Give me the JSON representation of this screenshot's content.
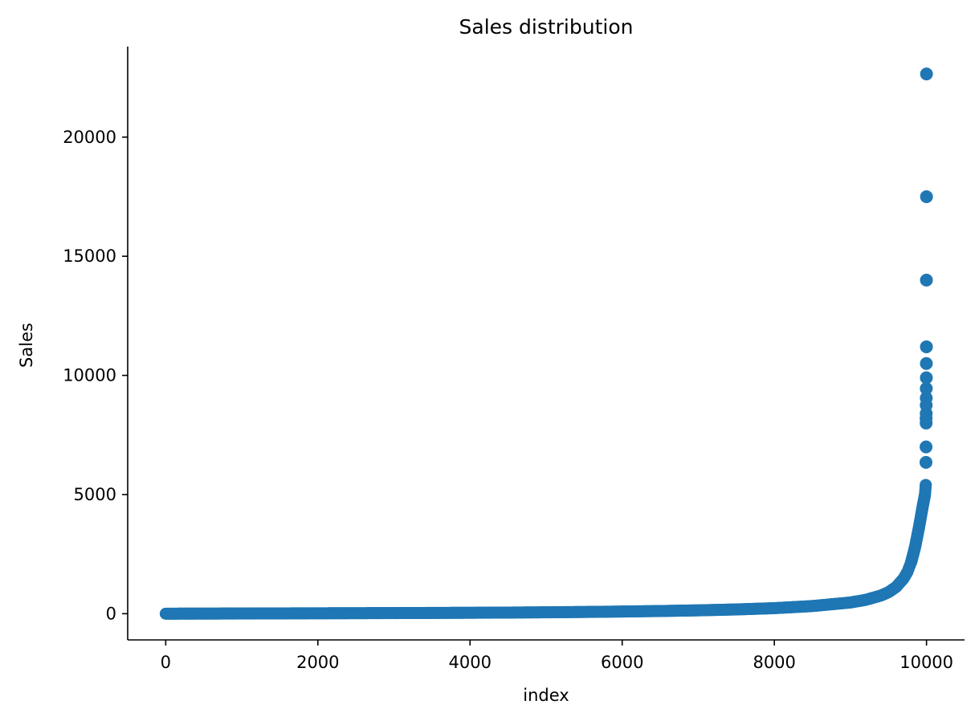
{
  "chart_data": {
    "type": "scatter",
    "title": "Sales distribution",
    "xlabel": "index",
    "ylabel": "Sales",
    "xlim": [
      -500,
      10500
    ],
    "ylim": [
      -1100,
      23800
    ],
    "xticks": [
      0,
      2000,
      4000,
      6000,
      8000,
      10000
    ],
    "yticks": [
      0,
      5000,
      10000,
      15000,
      20000
    ],
    "xtick_labels": [
      "0",
      "2000",
      "4000",
      "6000",
      "8000",
      "10000"
    ],
    "ytick_labels": [
      "0",
      "5000",
      "10000",
      "15000",
      "20000"
    ],
    "grid": false,
    "legend": "none",
    "marker_color": "#1f77b4",
    "curve_points": [
      [
        0,
        0
      ],
      [
        500,
        4
      ],
      [
        1000,
        8
      ],
      [
        1500,
        13
      ],
      [
        2000,
        17
      ],
      [
        2500,
        21
      ],
      [
        3000,
        26
      ],
      [
        3500,
        32
      ],
      [
        4000,
        38
      ],
      [
        4500,
        47
      ],
      [
        5000,
        58
      ],
      [
        5500,
        72
      ],
      [
        6000,
        90
      ],
      [
        6500,
        112
      ],
      [
        7000,
        140
      ],
      [
        7500,
        178
      ],
      [
        8000,
        232
      ],
      [
        8500,
        320
      ],
      [
        9000,
        470
      ],
      [
        9200,
        580
      ],
      [
        9400,
        760
      ],
      [
        9500,
        900
      ],
      [
        9600,
        1120
      ],
      [
        9700,
        1480
      ],
      [
        9750,
        1760
      ],
      [
        9800,
        2180
      ],
      [
        9850,
        2800
      ],
      [
        9900,
        3600
      ],
      [
        9950,
        4500
      ],
      [
        9980,
        5000
      ],
      [
        9990,
        5400
      ]
    ],
    "outliers": [
      {
        "x": 9993,
        "y": 6350
      },
      {
        "x": 9994,
        "y": 7000
      },
      {
        "x": 9995,
        "y": 8000
      },
      {
        "x": 9995,
        "y": 8200
      },
      {
        "x": 9996,
        "y": 8400
      },
      {
        "x": 9996,
        "y": 8750
      },
      {
        "x": 9997,
        "y": 9050
      },
      {
        "x": 9997,
        "y": 9450
      },
      {
        "x": 9998,
        "y": 9900
      },
      {
        "x": 9998,
        "y": 10500
      },
      {
        "x": 9999,
        "y": 11200
      },
      {
        "x": 9999,
        "y": 14000
      },
      {
        "x": 10000,
        "y": 17500
      },
      {
        "x": 10000,
        "y": 22650
      }
    ]
  }
}
